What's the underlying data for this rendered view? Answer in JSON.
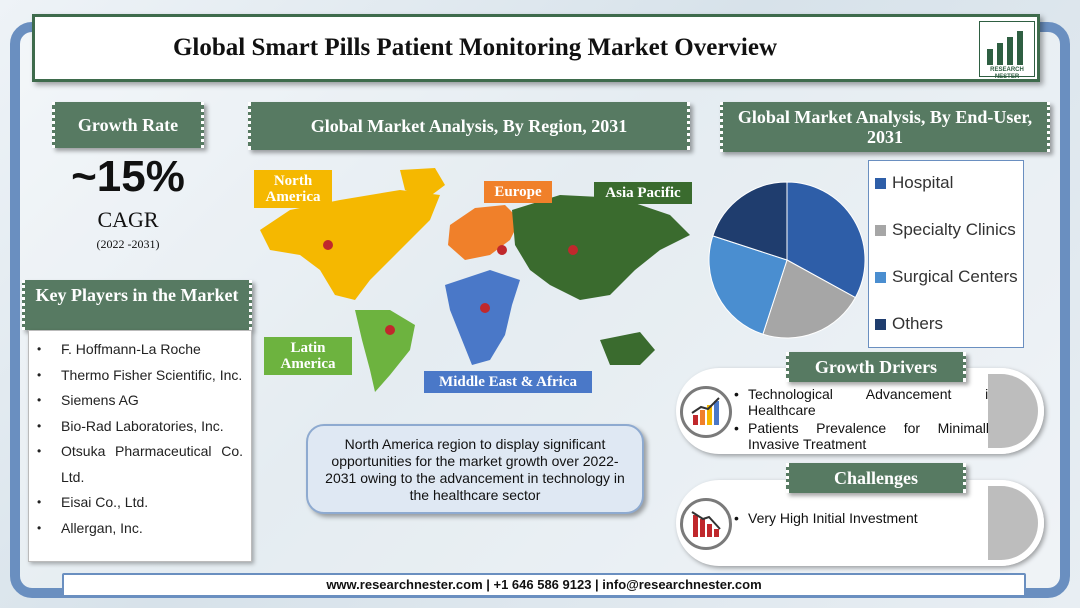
{
  "title": "Global Smart Pills Patient Monitoring Market Overview",
  "logo": {
    "line1": "RESEARCH",
    "line2": "NESTER"
  },
  "growth": {
    "tag": "Growth Rate",
    "value": "~15%",
    "label": "CAGR",
    "period": "(2022 -2031)"
  },
  "key_players": {
    "tag": "Key Players in the Market",
    "items": [
      "F. Hoffmann-La Roche",
      "Thermo Fisher Scientific, Inc.",
      "Siemens AG",
      "Bio-Rad Laboratories, Inc.",
      "Otsuka Pharmaceutical Co. Ltd.",
      "Eisai Co., Ltd.",
      "Allergan, Inc."
    ]
  },
  "region": {
    "tag": "Global Market Analysis, By Region, 2031",
    "labels": {
      "north_america": "North America",
      "europe": "Europe",
      "asia_pacific": "Asia Pacific",
      "latin_america": "Latin America",
      "mea": "Middle East & Africa"
    },
    "colors": {
      "north_america": "#f5b800",
      "europe": "#f0802a",
      "asia_pacific": "#3a6b2e",
      "latin_america": "#6db33f",
      "mea": "#4a78c8"
    }
  },
  "note": "North America region to display significant opportunities for the market growth over 2022-2031 owing to the advancement in technology in the healthcare sector",
  "enduser": {
    "tag": "Global Market Analysis, By End-User, 2031"
  },
  "chart_data": {
    "type": "pie",
    "title": "Global Market Analysis, By End-User, 2031",
    "categories": [
      "Hospital",
      "Specialty Clinics",
      "Surgical Centers",
      "Others"
    ],
    "values": [
      33,
      22,
      25,
      20
    ],
    "colors": [
      "#2e5ea8",
      "#a6a6a6",
      "#4a8ed0",
      "#1f3d6e"
    ],
    "legend_position": "right"
  },
  "drivers": {
    "tag": "Growth Drivers",
    "items": [
      "Technological Advancement in Healthcare",
      "Patients Prevalence for Minimally Invasive Treatment"
    ]
  },
  "challenges": {
    "tag": "Challenges",
    "items": [
      "Very High Initial Investment"
    ]
  },
  "footer": "www.researchnester.com | +1 646 586 9123 | info@researchnester.com"
}
